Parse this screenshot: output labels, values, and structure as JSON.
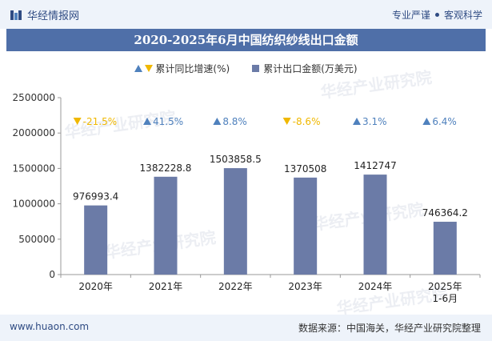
{
  "header": {
    "brand": "华经情报网",
    "slogan_left": "专业严谨",
    "slogan_right": "客观科学"
  },
  "title": "2020-2025年6月中国纺织纱线出口金额",
  "legend": {
    "growth_label": "累计同比增速(%)",
    "value_label": "累计出口金额(万美元)"
  },
  "footer": {
    "website": "www.huaon.com",
    "source": "数据来源：中国海关，华经产业研究院整理"
  },
  "watermark": "华经产业研究院",
  "colors": {
    "bar": "#6b7ba7",
    "up": "#4f81bd",
    "down": "#f0b800",
    "title_bg": "#4f6fa8"
  },
  "chart_data": {
    "type": "bar",
    "categories": [
      "2020年",
      "2021年",
      "2022年",
      "2023年",
      "2024年",
      "2025年\n1-6月"
    ],
    "series": [
      {
        "name": "累计出口金额(万美元)",
        "values": [
          976993.4,
          1382228.8,
          1503858.5,
          1370508,
          1412747,
          746364.2
        ],
        "labels": [
          "976993.4",
          "1382228.8",
          "1503858.5",
          "1370508",
          "1412747",
          "746364.2"
        ]
      },
      {
        "name": "累计同比增速(%)",
        "values": [
          -21.5,
          41.5,
          8.8,
          -8.6,
          3.1,
          6.4
        ],
        "labels": [
          "-21.5%",
          "41.5%",
          "8.8%",
          "-8.6%",
          "3.1%",
          "6.4%"
        ]
      }
    ],
    "yticks": [
      "0",
      "500000",
      "1000000",
      "1500000",
      "2000000",
      "2500000"
    ],
    "ylim": [
      0,
      2500000
    ],
    "grid": false,
    "legend_position": "top"
  }
}
